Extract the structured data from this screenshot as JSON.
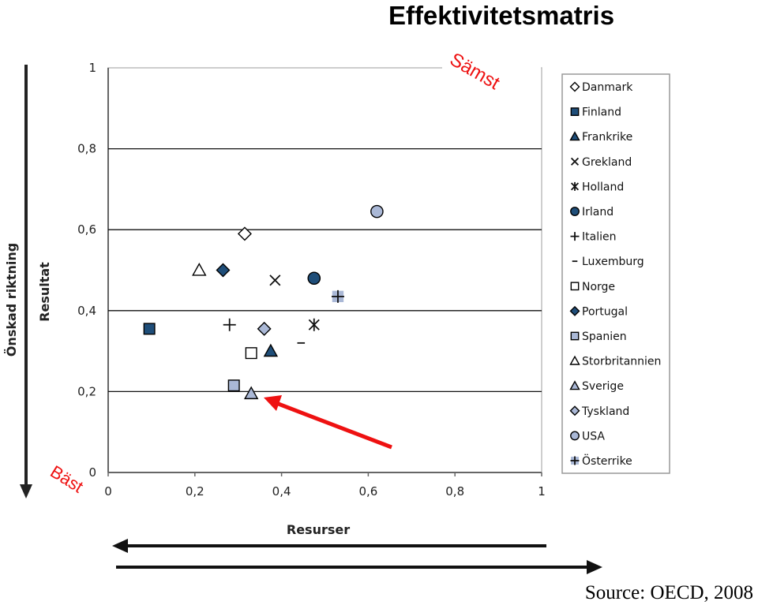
{
  "title": "Effektivitetsmatris",
  "source": "Source: OECD, 2008",
  "colors": {
    "dark": "#1f4e79",
    "light": "#aab8d6",
    "open": "#ffffff",
    "annotation_red": "#ee1111",
    "line": "#000000"
  },
  "chart_data": {
    "type": "scatter",
    "xlabel": "Resurser",
    "ylabel": "Resultat",
    "y_direction_label": "Önskad riktning",
    "xlim": [
      0,
      1
    ],
    "ylim": [
      0,
      1
    ],
    "x_ticks": [
      "0",
      "0,2",
      "0,4",
      "0,6",
      "0,8",
      "1"
    ],
    "y_ticks": [
      "0",
      "0,2",
      "0,4",
      "0,6",
      "0,8",
      "1"
    ],
    "grid": "horizontal",
    "legend_position": "right",
    "annotations": {
      "worst": "Sämst",
      "best": "Bäst"
    },
    "series": [
      {
        "name": "Danmark",
        "marker": "diamond-open",
        "x": 0.315,
        "y": 0.59
      },
      {
        "name": "Finland",
        "marker": "square-dark",
        "x": 0.095,
        "y": 0.355
      },
      {
        "name": "Frankrike",
        "marker": "triangle-dark",
        "x": 0.375,
        "y": 0.3
      },
      {
        "name": "Grekland",
        "marker": "x",
        "x": 0.385,
        "y": 0.475
      },
      {
        "name": "Holland",
        "marker": "asterisk",
        "x": 0.475,
        "y": 0.365
      },
      {
        "name": "Irland",
        "marker": "circle-dark",
        "x": 0.475,
        "y": 0.48
      },
      {
        "name": "Italien",
        "marker": "plus",
        "x": 0.28,
        "y": 0.365
      },
      {
        "name": "Luxemburg",
        "marker": "dash",
        "x": 0.445,
        "y": 0.32
      },
      {
        "name": "Norge",
        "marker": "square-open",
        "x": 0.33,
        "y": 0.295
      },
      {
        "name": "Portugal",
        "marker": "diamond-dark",
        "x": 0.265,
        "y": 0.5
      },
      {
        "name": "Spanien",
        "marker": "square-light",
        "x": 0.29,
        "y": 0.215
      },
      {
        "name": "Storbritannien",
        "marker": "triangle-open",
        "x": 0.21,
        "y": 0.5
      },
      {
        "name": "Sverige",
        "marker": "triangle-light",
        "x": 0.33,
        "y": 0.195
      },
      {
        "name": "Tyskland",
        "marker": "diamond-light",
        "x": 0.36,
        "y": 0.355
      },
      {
        "name": "USA",
        "marker": "circle-light",
        "x": 0.62,
        "y": 0.645
      },
      {
        "name": "Österrike",
        "marker": "plus-square",
        "x": 0.53,
        "y": 0.435
      }
    ]
  }
}
